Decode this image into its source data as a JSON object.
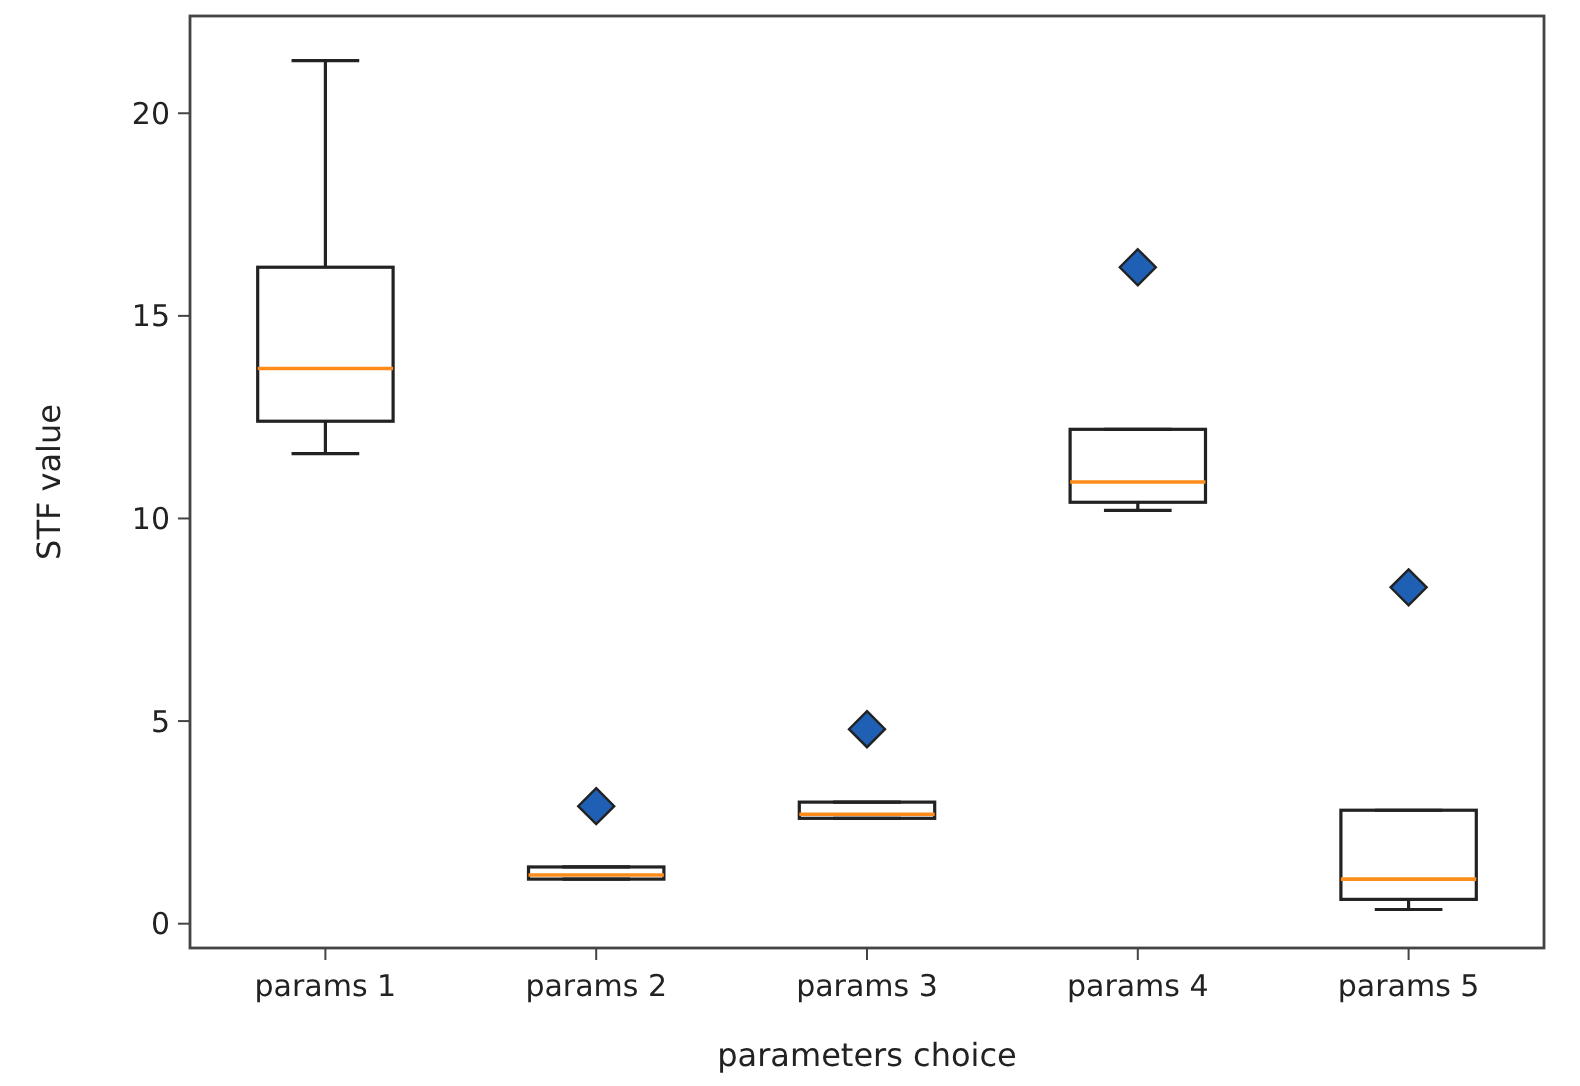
{
  "chart_data": {
    "type": "box",
    "xlabel": "parameters choice",
    "ylabel": "STF value",
    "categories": [
      "params 1",
      "params 2",
      "params 3",
      "params 4",
      "params 5"
    ],
    "boxes": [
      {
        "low": 11.6,
        "q1": 12.4,
        "median": 13.7,
        "q3": 16.2,
        "high": 21.3
      },
      {
        "low": 1.1,
        "q1": 1.1,
        "median": 1.2,
        "q3": 1.4,
        "high": 1.4,
        "outliers": [
          2.9
        ]
      },
      {
        "low": 2.6,
        "q1": 2.6,
        "median": 2.7,
        "q3": 3.0,
        "high": 3.0,
        "outliers": [
          4.8
        ]
      },
      {
        "low": 10.2,
        "q1": 10.4,
        "median": 10.9,
        "q3": 12.2,
        "high": 12.2,
        "outliers": [
          16.2
        ]
      },
      {
        "low": 0.35,
        "q1": 0.6,
        "median": 1.1,
        "q3": 2.8,
        "high": 2.8,
        "outliers": [
          8.3
        ]
      }
    ],
    "ylim": [
      -0.6,
      22.4
    ],
    "yticks": [
      0,
      5,
      10,
      15,
      20
    ],
    "grid": false,
    "marker": "diamond"
  }
}
